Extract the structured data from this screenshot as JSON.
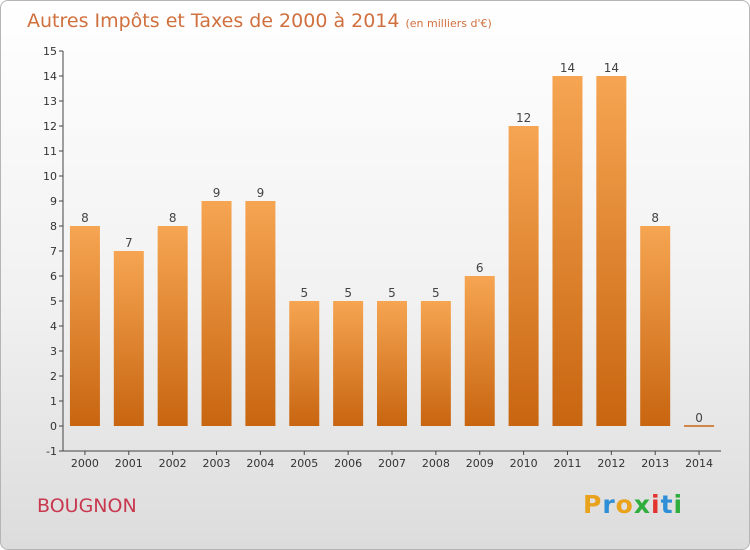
{
  "header": {
    "title": "Autres Impôts et Taxes de 2000 à 2014",
    "unit": "(en milliers d'€)"
  },
  "footer": {
    "commune": "BOUGNON",
    "logo": "Proxiti"
  },
  "colors": {
    "bar_light": "#f6a552",
    "bar_dark": "#c86510",
    "title": "#d0703e",
    "commune": "#c8384f",
    "axis": "#444444",
    "grid": "#cccccc"
  },
  "chart_data": {
    "type": "bar",
    "title": "Autres Impôts et Taxes de 2000 à 2014",
    "subtitle": "(en milliers d'€)",
    "xlabel": "",
    "ylabel": "",
    "categories": [
      "2000",
      "2001",
      "2002",
      "2003",
      "2004",
      "2005",
      "2006",
      "2007",
      "2008",
      "2009",
      "2010",
      "2011",
      "2012",
      "2013",
      "2014"
    ],
    "values": [
      8,
      7,
      8,
      9,
      9,
      5,
      5,
      5,
      5,
      6,
      12,
      14,
      14,
      8,
      0
    ],
    "data_labels": [
      "8",
      "7",
      "8",
      "9",
      "9",
      "5",
      "5",
      "5",
      "5",
      "6",
      "12",
      "14",
      "14",
      "8",
      "0"
    ],
    "ylim": [
      -1,
      15
    ],
    "yticks": [
      "-1",
      "0",
      "1",
      "2",
      "3",
      "4",
      "5",
      "6",
      "7",
      "8",
      "9",
      "10",
      "11",
      "12",
      "13",
      "14",
      "15"
    ],
    "grid": false,
    "legend": "none"
  }
}
